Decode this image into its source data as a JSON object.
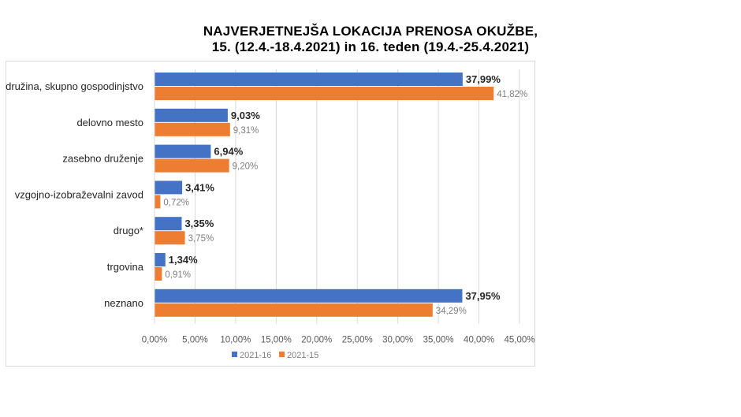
{
  "chart_data": {
    "type": "bar",
    "orientation": "horizontal",
    "title": [
      "NAJVERJETNEJŠA LOKACIJA PRENOSA OKUŽBE,",
      "15. (12.4.-18.4.2021) in 16. teden (19.4.-25.4.2021)"
    ],
    "categories": [
      "družina, skupno gospodinjstvo",
      "delovno mesto",
      "zasebno druženje",
      "vzgojno-izobraževalni zavod",
      "drugo*",
      "trgovina",
      "neznano"
    ],
    "series": [
      {
        "name": "2021-16",
        "color": "#4472C4",
        "values": [
          37.99,
          9.03,
          6.94,
          3.41,
          3.35,
          1.34,
          37.95
        ],
        "labels": [
          "37,99%",
          "9,03%",
          "6,94%",
          "3,41%",
          "3,35%",
          "1,34%",
          "37,95%"
        ]
      },
      {
        "name": "2021-15",
        "color": "#ED7D31",
        "values": [
          41.82,
          9.31,
          9.2,
          0.72,
          3.75,
          0.91,
          34.29
        ],
        "labels": [
          "41,82%",
          "9,31%",
          "9,20%",
          "0,72%",
          "3,75%",
          "0,91%",
          "34,29%"
        ]
      }
    ],
    "xlim": [
      0,
      45
    ],
    "xticks": [
      "0,00%",
      "5,00%",
      "10,00%",
      "15,00%",
      "20,00%",
      "25,00%",
      "30,00%",
      "35,00%",
      "40,00%",
      "45,00%"
    ],
    "grid": true,
    "legend": "bottom"
  }
}
